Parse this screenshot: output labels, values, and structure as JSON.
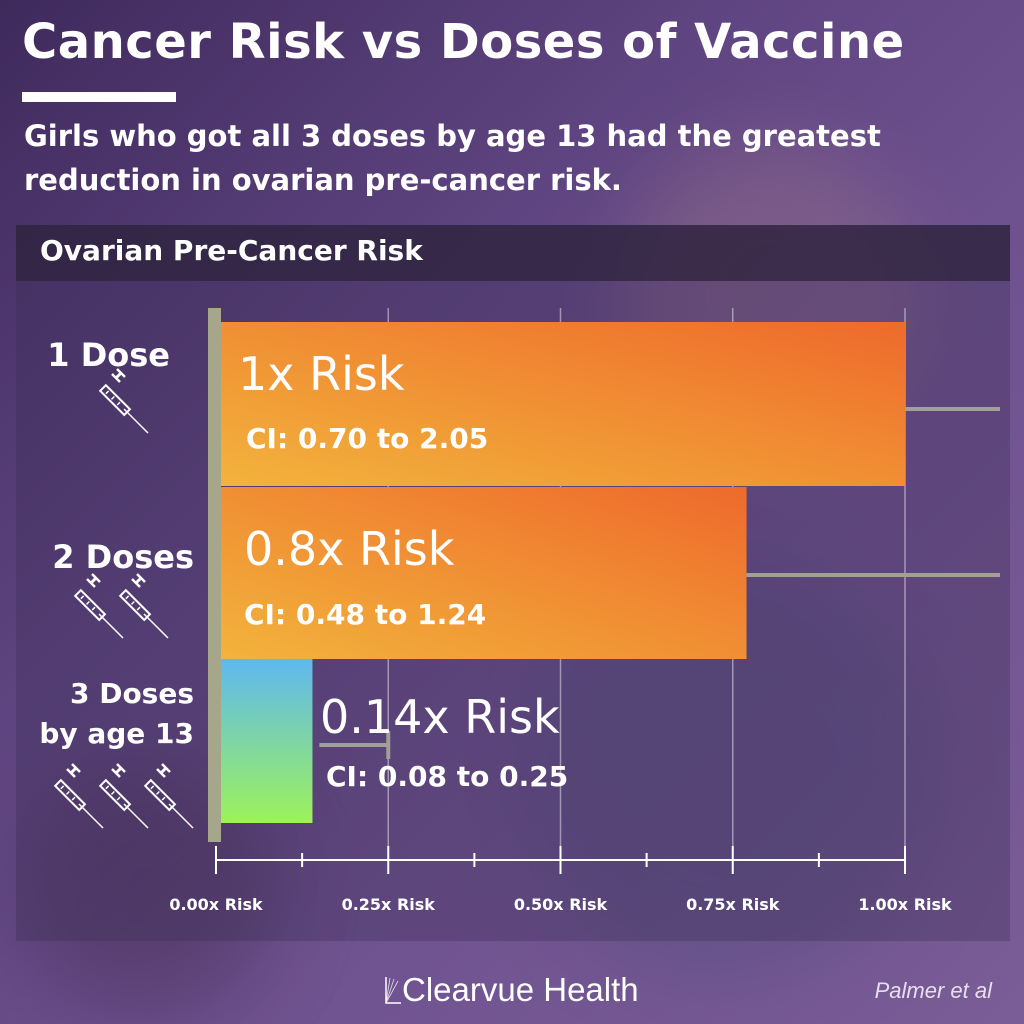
{
  "title": "Cancer Risk vs Doses of Vaccine",
  "subtitle": "Girls who got all 3 doses by age 13 had the greatest reduction in ovarian pre-cancer risk.",
  "chart_data": {
    "type": "bar",
    "orientation": "horizontal",
    "title": "Ovarian Pre-Cancer Risk",
    "categories": [
      {
        "lines": [
          "1 Dose"
        ],
        "syringes": 1
      },
      {
        "lines": [
          "2 Doses"
        ],
        "syringes": 2
      },
      {
        "lines": [
          "3 Doses",
          "by age 13"
        ],
        "syringes": 3
      }
    ],
    "values": [
      1.0,
      0.77,
      0.14
    ],
    "value_labels": [
      "1x Risk",
      "0.8x Risk",
      "0.14x Risk"
    ],
    "ci": [
      [
        0.7,
        2.05
      ],
      [
        0.48,
        1.24
      ],
      [
        0.08,
        0.25
      ]
    ],
    "ci_labels": [
      "CI: 0.70 to 2.05",
      "CI: 0.48 to 1.24",
      "CI: 0.08 to 0.25"
    ],
    "xlim": [
      0,
      1.0
    ],
    "xticks": [
      0,
      0.25,
      0.5,
      0.75,
      1.0
    ],
    "xtick_labels": [
      "0.00x Risk",
      "0.25x Risk",
      "0.50x Risk",
      "0.75x Risk",
      "1.00x Risk"
    ],
    "grid": true,
    "colors": {
      "bar_orange_start": "#f2b43c",
      "bar_orange_end": "#ee6a2c",
      "bar_green_top": "#5fb8f0",
      "bar_green_bottom": "#9df25a",
      "axis": "#a5a68a",
      "ci_line": "#a0a096"
    }
  },
  "footer": {
    "brand": "Clearvue Health",
    "source": "Palmer et al"
  }
}
